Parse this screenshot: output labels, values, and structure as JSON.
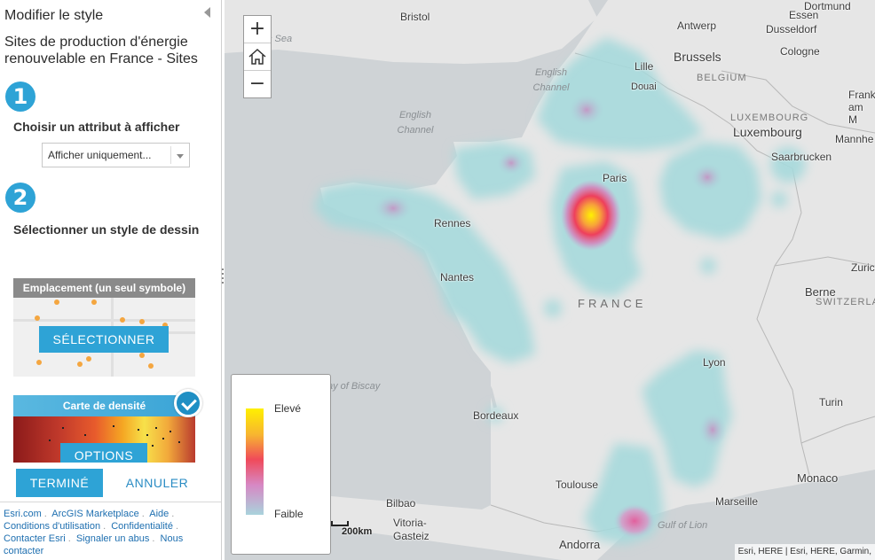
{
  "panel": {
    "title": "Modifier le style",
    "layer_name": "Sites de production d'énergie renouvelable en France - Sites",
    "step1": {
      "number": "1",
      "label": "Choisir un attribut à afficher"
    },
    "attribute_select": {
      "value": "Afficher uniquement..."
    },
    "step2": {
      "number": "2",
      "label": "Sélectionner un style de dessin"
    },
    "style_location": {
      "title": "Emplacement (un seul symbole)",
      "button": "SÉLECTIONNER"
    },
    "style_density": {
      "title": "Carte de densité",
      "button": "OPTIONS",
      "selected": true
    },
    "done_button": "TERMINÉ",
    "cancel_button": "ANNULER",
    "footer_links": [
      "Esri.com",
      "ArcGIS Marketplace",
      "Aide",
      "Conditions d'utilisation",
      "Confidentialité",
      "Contacter Esri",
      "Signaler un abus",
      "Nous contacter"
    ]
  },
  "map": {
    "zoom_in": "+",
    "zoom_out": "−",
    "home_icon": "home-icon",
    "labels": {
      "dortmund": "Dortmund",
      "essen": "Essen",
      "dusseldorf": "Dusseldorf",
      "cologne": "Cologne",
      "bristol": "Bristol",
      "antwerp": "Antwerp",
      "brussels": "Brussels",
      "lille": "Lille",
      "douai": "Douai",
      "frankfurt": "Frank am M",
      "luxembourg": "Luxembourg",
      "saarbrucken": "Saarbrucken",
      "mannheim": "Mannhe",
      "paris": "Paris",
      "rennes": "Rennes",
      "nantes": "Nantes",
      "zurich": "Zuric",
      "berne": "Berne",
      "lyon": "Lyon",
      "turin": "Turin",
      "bordeaux": "Bordeaux",
      "toulouse": "Toulouse",
      "monaco": "Monaco",
      "marseille": "Marseille",
      "bilbao": "Bilbao",
      "vitoria": "Vitoria- Gasteiz",
      "andorra": "Andorra"
    },
    "country_labels": {
      "belgium": "BELGIUM",
      "luxembourg": "LUXEMBOURG",
      "switzerland": "SWITZERLAND",
      "france": "FRANCE"
    },
    "sea_labels": {
      "celtic": "c Sea",
      "english_channel_1": "English Channel",
      "english_channel_2": "English Channel",
      "biscay": "ay of Biscay",
      "lion": "Gulf of Lion"
    },
    "legend": {
      "high": "Elevé",
      "low": "Faible"
    },
    "scale": "200km",
    "attribution": "Esri, HERE | Esri, HERE, Garmin,"
  }
}
